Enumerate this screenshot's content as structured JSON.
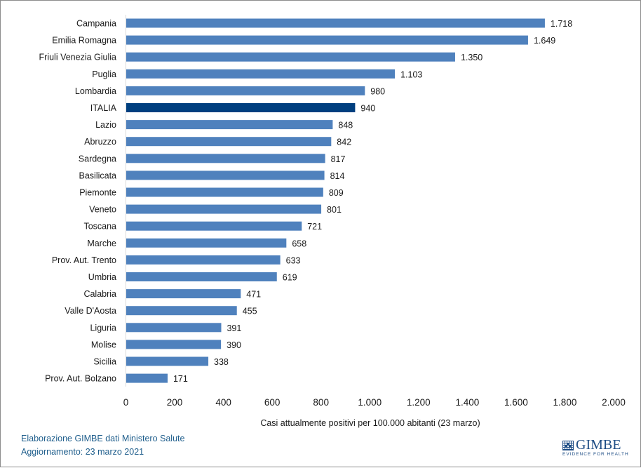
{
  "chart_data": {
    "type": "bar",
    "orientation": "horizontal",
    "title": "",
    "xlabel": "Casi attualmente positivi per 100.000 abitanti (23 marzo)",
    "ylabel": "",
    "xlim": [
      0,
      2000
    ],
    "xticks": [
      0,
      200,
      400,
      600,
      800,
      1000,
      1200,
      1400,
      1600,
      1800,
      2000
    ],
    "xtick_labels": [
      "0",
      "200",
      "400",
      "600",
      "800",
      "1.000",
      "1.200",
      "1.400",
      "1.600",
      "1.800",
      "2.000"
    ],
    "grid": false,
    "legend": "none",
    "colors": {
      "default": "#4f81bd",
      "highlight": "#003f7f"
    },
    "categories": [
      "Campania",
      "Emilia Romagna",
      "Friuli Venezia Giulia",
      "Puglia",
      "Lombardia",
      "ITALIA",
      "Lazio",
      "Abruzzo",
      "Sardegna",
      "Basilicata",
      "Piemonte",
      "Veneto",
      "Toscana",
      "Marche",
      "Prov. Aut. Trento",
      "Umbria",
      "Calabria",
      "Valle D'Aosta",
      "Liguria",
      "Molise",
      "Sicilia",
      "Prov. Aut. Bolzano"
    ],
    "values": [
      1718,
      1649,
      1350,
      1103,
      980,
      940,
      848,
      842,
      817,
      814,
      809,
      801,
      721,
      658,
      633,
      619,
      471,
      455,
      391,
      390,
      338,
      171
    ],
    "value_labels": [
      "1.718",
      "1.649",
      "1.350",
      "1.103",
      "980",
      "940",
      "848",
      "842",
      "817",
      "814",
      "809",
      "801",
      "721",
      "658",
      "633",
      "619",
      "471",
      "455",
      "391",
      "390",
      "338",
      "171"
    ],
    "highlight_category": "ITALIA"
  },
  "footer": {
    "source": "Elaborazione GIMBE dati Ministero Salute",
    "updated": "Aggiornamento: 23 marzo 2021"
  },
  "logo": {
    "name": "GIMBE",
    "tagline": "EVIDENCE FOR HEALTH"
  }
}
